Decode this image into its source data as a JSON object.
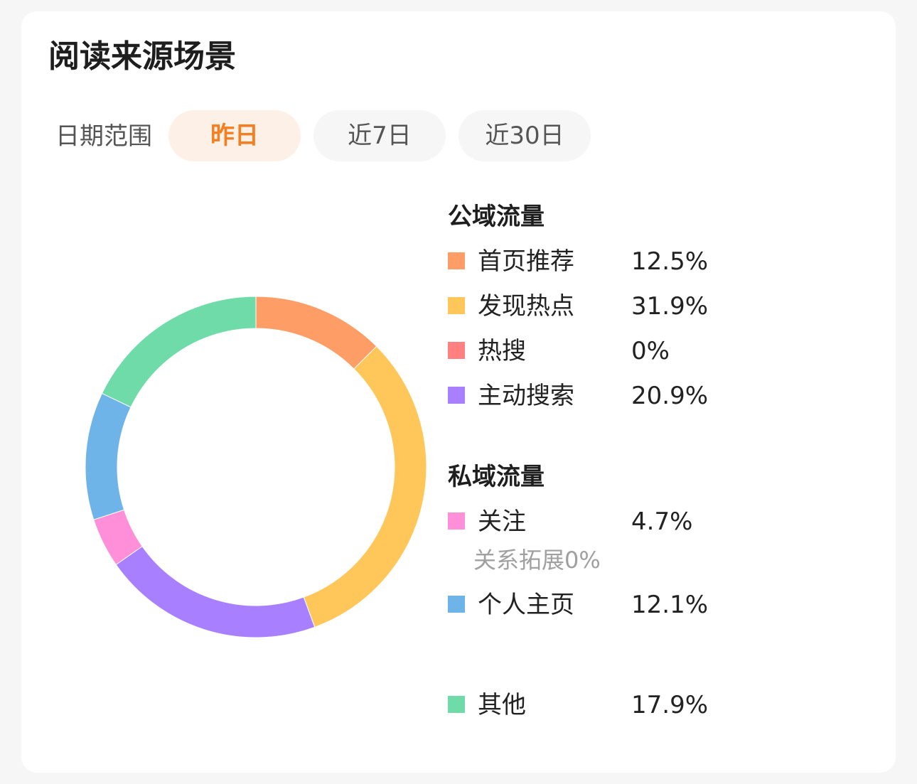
{
  "title": "阅读来源场景",
  "date_range": {
    "label": "日期范围",
    "options": [
      "昨日",
      "近7日",
      "近30日"
    ],
    "selected": "昨日"
  },
  "legend": {
    "public_title": "公域流量",
    "private_title": "私域流量",
    "sub_note": "关系拓展0%"
  },
  "chart_data": {
    "type": "pie",
    "donut": true,
    "categories": [
      "首页推荐",
      "发现热点",
      "热搜",
      "主动搜索",
      "关注",
      "个人主页",
      "其他"
    ],
    "values": [
      12.5,
      31.9,
      0,
      20.9,
      4.7,
      12.1,
      17.9
    ],
    "labels": [
      "12.5%",
      "31.9%",
      "0%",
      "20.9%",
      "4.7%",
      "12.1%",
      "17.9%"
    ],
    "colors": [
      "#ff9d66",
      "#ffc759",
      "#ff8080",
      "#a880ff",
      "#ff8fd8",
      "#6eb4e8",
      "#6edba8"
    ],
    "groups": [
      {
        "name": "公域流量",
        "items": [
          0,
          1,
          2,
          3
        ]
      },
      {
        "name": "私域流量",
        "items": [
          4,
          5
        ]
      }
    ]
  }
}
